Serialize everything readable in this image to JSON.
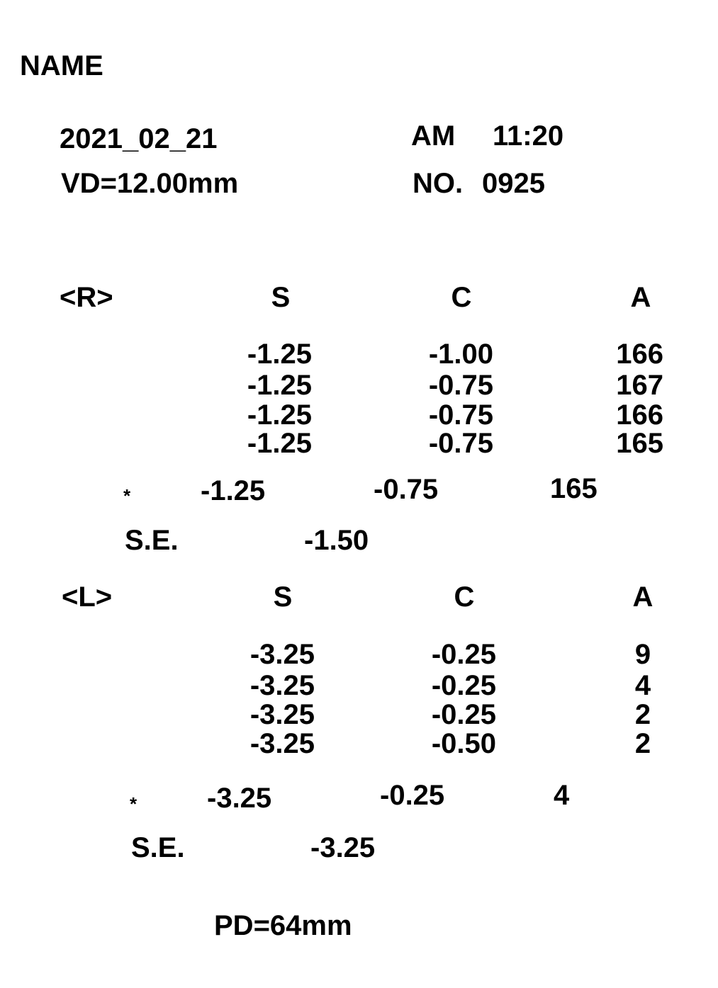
{
  "header": {
    "name_label": "NAME",
    "date": "2021_02_21",
    "ampm": "AM",
    "time": "11:20",
    "vd": "VD=12.00mm",
    "no_label": "NO.",
    "no_value": "0925"
  },
  "right": {
    "label": "<R>",
    "col_s": "S",
    "col_c": "C",
    "col_a": "A",
    "rows": [
      {
        "s": "-1.25",
        "c": "-1.00",
        "a": "166"
      },
      {
        "s": "-1.25",
        "c": "-0.75",
        "a": "167"
      },
      {
        "s": "-1.25",
        "c": "-0.75",
        "a": "166"
      },
      {
        "s": "-1.25",
        "c": "-0.75",
        "a": "165"
      }
    ],
    "avg": {
      "mark": "*",
      "s": "-1.25",
      "c": "-0.75",
      "a": "165"
    },
    "se_label": "S.E.",
    "se_value": "-1.50"
  },
  "left": {
    "label": "<L>",
    "col_s": "S",
    "col_c": "C",
    "col_a": "A",
    "rows": [
      {
        "s": "-3.25",
        "c": "-0.25",
        "a": "9"
      },
      {
        "s": "-3.25",
        "c": "-0.25",
        "a": "4"
      },
      {
        "s": "-3.25",
        "c": "-0.25",
        "a": "2"
      },
      {
        "s": "-3.25",
        "c": "-0.50",
        "a": "2"
      }
    ],
    "avg": {
      "mark": "*",
      "s": "-3.25",
      "c": "-0.25",
      "a": "4"
    },
    "se_label": "S.E.",
    "se_value": "-3.25"
  },
  "footer": {
    "pd": "PD=64mm"
  }
}
